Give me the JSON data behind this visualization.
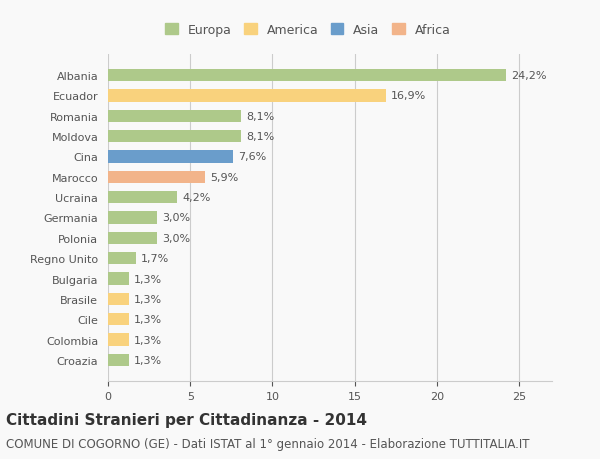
{
  "countries": [
    "Albania",
    "Ecuador",
    "Romania",
    "Moldova",
    "Cina",
    "Marocco",
    "Ucraina",
    "Germania",
    "Polonia",
    "Regno Unito",
    "Bulgaria",
    "Brasile",
    "Cile",
    "Colombia",
    "Croazia"
  ],
  "values": [
    24.2,
    16.9,
    8.1,
    8.1,
    7.6,
    5.9,
    4.2,
    3.0,
    3.0,
    1.7,
    1.3,
    1.3,
    1.3,
    1.3,
    1.3
  ],
  "labels": [
    "24,2%",
    "16,9%",
    "8,1%",
    "8,1%",
    "7,6%",
    "5,9%",
    "4,2%",
    "3,0%",
    "3,0%",
    "1,7%",
    "1,3%",
    "1,3%",
    "1,3%",
    "1,3%",
    "1,3%"
  ],
  "colors": [
    "#aec98a",
    "#f9d27d",
    "#aec98a",
    "#aec98a",
    "#6a9dcb",
    "#f2b48a",
    "#aec98a",
    "#aec98a",
    "#aec98a",
    "#aec98a",
    "#aec98a",
    "#f9d27d",
    "#f9d27d",
    "#f9d27d",
    "#aec98a"
  ],
  "legend_labels": [
    "Europa",
    "America",
    "Asia",
    "Africa"
  ],
  "legend_colors": [
    "#aec98a",
    "#f9d27d",
    "#6a9dcb",
    "#f2b48a"
  ],
  "title": "Cittadini Stranieri per Cittadinanza - 2014",
  "subtitle": "COMUNE DI COGORNO (GE) - Dati ISTAT al 1° gennaio 2014 - Elaborazione TUTTITALIA.IT",
  "xlim": [
    0,
    27
  ],
  "background_color": "#f9f9f9",
  "grid_color": "#cccccc",
  "bar_height": 0.6,
  "title_fontsize": 11,
  "subtitle_fontsize": 8.5,
  "label_fontsize": 8,
  "legend_fontsize": 9,
  "tick_fontsize": 8
}
